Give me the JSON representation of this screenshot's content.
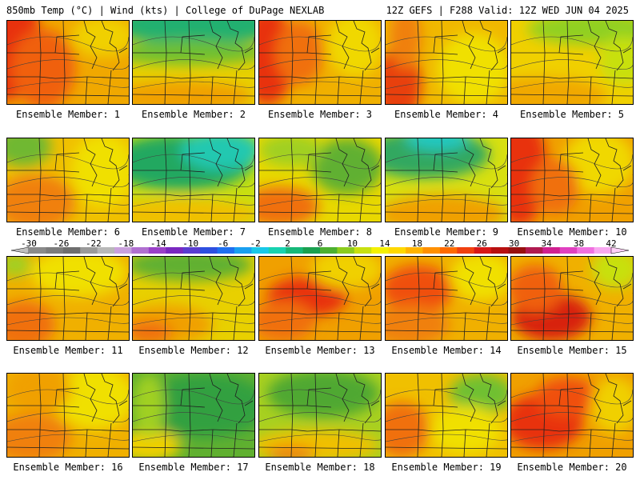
{
  "header": {
    "left": "850mb Temp (°C) | Wind (kts) | College of DuPage NEXLAB",
    "right": "12Z GEFS | F288 Valid: 12Z WED JUN 04 2025"
  },
  "colorbar": {
    "labels": [
      "-30",
      "-26",
      "-22",
      "-18",
      "-14",
      "-10",
      "-6",
      "-2",
      "2",
      "6",
      "10",
      "14",
      "18",
      "22",
      "26",
      "30",
      "34",
      "38",
      "42"
    ],
    "colors": [
      "#8a8a8a",
      "#7c7c7c",
      "#6e6e6e",
      "#9a9a9a",
      "#b8b8b8",
      "#c9a0dc",
      "#b070d0",
      "#9a40c8",
      "#7a28c0",
      "#5a3cd0",
      "#2e4fe0",
      "#1f6ff0",
      "#1a9ff0",
      "#19c8e8",
      "#18d2b0",
      "#16b878",
      "#1aa050",
      "#4cb030",
      "#8ccc1e",
      "#c8e010",
      "#f4f000",
      "#ffd800",
      "#ffb400",
      "#ff9000",
      "#ff6a00",
      "#f04010",
      "#d81818",
      "#b81010",
      "#981010",
      "#b01a50",
      "#d02090",
      "#e040c0",
      "#f070e0",
      "#f8a8f0"
    ]
  },
  "members": [
    {
      "label": "Ensemble Member: 1",
      "base": "#f0a800",
      "blobs": [
        {
          "c": "#e83010",
          "x": 0,
          "y": 20,
          "rx": 40,
          "ry": 80
        },
        {
          "c": "#f06010",
          "x": 45,
          "y": 60,
          "rx": 40,
          "ry": 50
        },
        {
          "c": "#f0d000",
          "x": 120,
          "y": 20,
          "rx": 40,
          "ry": 25
        }
      ]
    },
    {
      "label": "Ensemble Member: 2",
      "base": "#e8d000",
      "blobs": [
        {
          "c": "#20b070",
          "x": 80,
          "y": 5,
          "rx": 110,
          "ry": 25
        },
        {
          "c": "#70c030",
          "x": 70,
          "y": 40,
          "rx": 100,
          "ry": 15
        },
        {
          "c": "#f0a000",
          "x": 60,
          "y": 95,
          "rx": 90,
          "ry": 20
        }
      ]
    },
    {
      "label": "Ensemble Member: 3",
      "base": "#f0b000",
      "blobs": [
        {
          "c": "#e83010",
          "x": 10,
          "y": 45,
          "rx": 35,
          "ry": 60
        },
        {
          "c": "#f07010",
          "x": 50,
          "y": 40,
          "rx": 30,
          "ry": 40
        },
        {
          "c": "#f0d800",
          "x": 120,
          "y": 30,
          "rx": 35,
          "ry": 40
        }
      ]
    },
    {
      "label": "Ensemble Member: 4",
      "base": "#f0b800",
      "blobs": [
        {
          "c": "#e84010",
          "x": 15,
          "y": 80,
          "rx": 30,
          "ry": 45
        },
        {
          "c": "#f08010",
          "x": 25,
          "y": 20,
          "rx": 20,
          "ry": 40
        },
        {
          "c": "#f0e000",
          "x": 110,
          "y": 60,
          "rx": 45,
          "ry": 45
        }
      ]
    },
    {
      "label": "Ensemble Member: 5",
      "base": "#f0d000",
      "blobs": [
        {
          "c": "#90d020",
          "x": 100,
          "y": 10,
          "rx": 80,
          "ry": 20
        },
        {
          "c": "#f0a800",
          "x": 40,
          "y": 95,
          "rx": 80,
          "ry": 25
        },
        {
          "c": "#c8e010",
          "x": 140,
          "y": 50,
          "rx": 30,
          "ry": 30
        }
      ]
    },
    {
      "label": "Ensemble Member: 6",
      "base": "#f0c000",
      "blobs": [
        {
          "c": "#70b830",
          "x": 20,
          "y": 10,
          "rx": 35,
          "ry": 25
        },
        {
          "c": "#f08010",
          "x": 35,
          "y": 80,
          "rx": 50,
          "ry": 35
        },
        {
          "c": "#f0e000",
          "x": 120,
          "y": 40,
          "rx": 40,
          "ry": 45
        }
      ]
    },
    {
      "label": "Ensemble Member: 7",
      "base": "#c8e010",
      "blobs": [
        {
          "c": "#20a860",
          "x": 60,
          "y": 30,
          "rx": 90,
          "ry": 35
        },
        {
          "c": "#20c8b0",
          "x": 110,
          "y": 15,
          "rx": 50,
          "ry": 25
        },
        {
          "c": "#f0c000",
          "x": 60,
          "y": 95,
          "rx": 100,
          "ry": 20
        }
      ]
    },
    {
      "label": "Ensemble Member: 8",
      "base": "#e8d800",
      "blobs": [
        {
          "c": "#60b030",
          "x": 110,
          "y": 35,
          "rx": 45,
          "ry": 35
        },
        {
          "c": "#f07010",
          "x": 25,
          "y": 85,
          "rx": 50,
          "ry": 25
        },
        {
          "c": "#a0d020",
          "x": 40,
          "y": 15,
          "rx": 40,
          "ry": 20
        }
      ]
    },
    {
      "label": "Ensemble Member: 9",
      "base": "#d8e010",
      "blobs": [
        {
          "c": "#30a860",
          "x": 50,
          "y": 20,
          "rx": 80,
          "ry": 30
        },
        {
          "c": "#20c8c0",
          "x": 65,
          "y": 0,
          "rx": 40,
          "ry": 15
        },
        {
          "c": "#f0a000",
          "x": 70,
          "y": 95,
          "rx": 80,
          "ry": 25
        }
      ]
    },
    {
      "label": "Ensemble Member: 10",
      "base": "#f0a000",
      "blobs": [
        {
          "c": "#e83010",
          "x": 10,
          "y": 40,
          "rx": 35,
          "ry": 70
        },
        {
          "c": "#f0d800",
          "x": 110,
          "y": 30,
          "rx": 45,
          "ry": 40
        },
        {
          "c": "#f07010",
          "x": 55,
          "y": 60,
          "rx": 30,
          "ry": 35
        }
      ]
    },
    {
      "label": "Ensemble Member: 11",
      "base": "#f0b000",
      "blobs": [
        {
          "c": "#f0e000",
          "x": 90,
          "y": 20,
          "rx": 60,
          "ry": 30
        },
        {
          "c": "#f07010",
          "x": 20,
          "y": 85,
          "rx": 40,
          "ry": 30
        },
        {
          "c": "#a0d020",
          "x": 10,
          "y": 10,
          "rx": 20,
          "ry": 15
        }
      ]
    },
    {
      "label": "Ensemble Member: 12",
      "base": "#e8d000",
      "blobs": [
        {
          "c": "#60b030",
          "x": 70,
          "y": 10,
          "rx": 80,
          "ry": 20
        },
        {
          "c": "#f0a000",
          "x": 40,
          "y": 85,
          "rx": 60,
          "ry": 25
        },
        {
          "c": "#f07010",
          "x": 20,
          "y": 95,
          "rx": 30,
          "ry": 15
        }
      ]
    },
    {
      "label": "Ensemble Member: 13",
      "base": "#f0a000",
      "blobs": [
        {
          "c": "#e83010",
          "x": 60,
          "y": 50,
          "rx": 50,
          "ry": 25
        },
        {
          "c": "#f0d000",
          "x": 110,
          "y": 15,
          "rx": 45,
          "ry": 25
        },
        {
          "c": "#f07010",
          "x": 30,
          "y": 80,
          "rx": 40,
          "ry": 25
        }
      ]
    },
    {
      "label": "Ensemble Member: 14",
      "base": "#f0b000",
      "blobs": [
        {
          "c": "#f05010",
          "x": 40,
          "y": 40,
          "rx": 45,
          "ry": 30
        },
        {
          "c": "#f0e000",
          "x": 120,
          "y": 25,
          "rx": 40,
          "ry": 30
        },
        {
          "c": "#f08010",
          "x": 30,
          "y": 85,
          "rx": 50,
          "ry": 25
        }
      ]
    },
    {
      "label": "Ensemble Member: 15",
      "base": "#f0b000",
      "blobs": [
        {
          "c": "#d82010",
          "x": 50,
          "y": 75,
          "rx": 50,
          "ry": 30
        },
        {
          "c": "#f06010",
          "x": 30,
          "y": 40,
          "rx": 35,
          "ry": 30
        },
        {
          "c": "#c8e010",
          "x": 130,
          "y": 15,
          "rx": 30,
          "ry": 25
        }
      ]
    },
    {
      "label": "Ensemble Member: 16",
      "base": "#f0b000",
      "blobs": [
        {
          "c": "#f08010",
          "x": 30,
          "y": 80,
          "rx": 50,
          "ry": 30
        },
        {
          "c": "#f0e000",
          "x": 110,
          "y": 30,
          "rx": 50,
          "ry": 40
        },
        {
          "c": "#f0a000",
          "x": 40,
          "y": 20,
          "rx": 40,
          "ry": 30
        }
      ]
    },
    {
      "label": "Ensemble Member: 17",
      "base": "#60b030",
      "blobs": [
        {
          "c": "#30a040",
          "x": 90,
          "y": 40,
          "rx": 80,
          "ry": 40
        },
        {
          "c": "#f0d000",
          "x": 20,
          "y": 90,
          "rx": 40,
          "ry": 20
        },
        {
          "c": "#a0d020",
          "x": 20,
          "y": 40,
          "rx": 20,
          "ry": 40
        }
      ]
    },
    {
      "label": "Ensemble Member: 18",
      "base": "#a8d020",
      "blobs": [
        {
          "c": "#50a830",
          "x": 80,
          "y": 25,
          "rx": 70,
          "ry": 30
        },
        {
          "c": "#f0c000",
          "x": 70,
          "y": 90,
          "rx": 80,
          "ry": 20
        },
        {
          "c": "#f08010",
          "x": 40,
          "y": 100,
          "rx": 30,
          "ry": 10
        }
      ]
    },
    {
      "label": "Ensemble Member: 19",
      "base": "#f0c000",
      "blobs": [
        {
          "c": "#f07010",
          "x": 20,
          "y": 70,
          "rx": 35,
          "ry": 35
        },
        {
          "c": "#70c030",
          "x": 120,
          "y": 25,
          "rx": 40,
          "ry": 25
        },
        {
          "c": "#f0e000",
          "x": 100,
          "y": 70,
          "rx": 45,
          "ry": 30
        }
      ]
    },
    {
      "label": "Ensemble Member: 20",
      "base": "#f0a000",
      "blobs": [
        {
          "c": "#e83010",
          "x": 40,
          "y": 60,
          "rx": 50,
          "ry": 35
        },
        {
          "c": "#f05010",
          "x": 70,
          "y": 30,
          "rx": 40,
          "ry": 25
        },
        {
          "c": "#f0d000",
          "x": 130,
          "y": 40,
          "rx": 30,
          "ry": 35
        }
      ]
    }
  ]
}
